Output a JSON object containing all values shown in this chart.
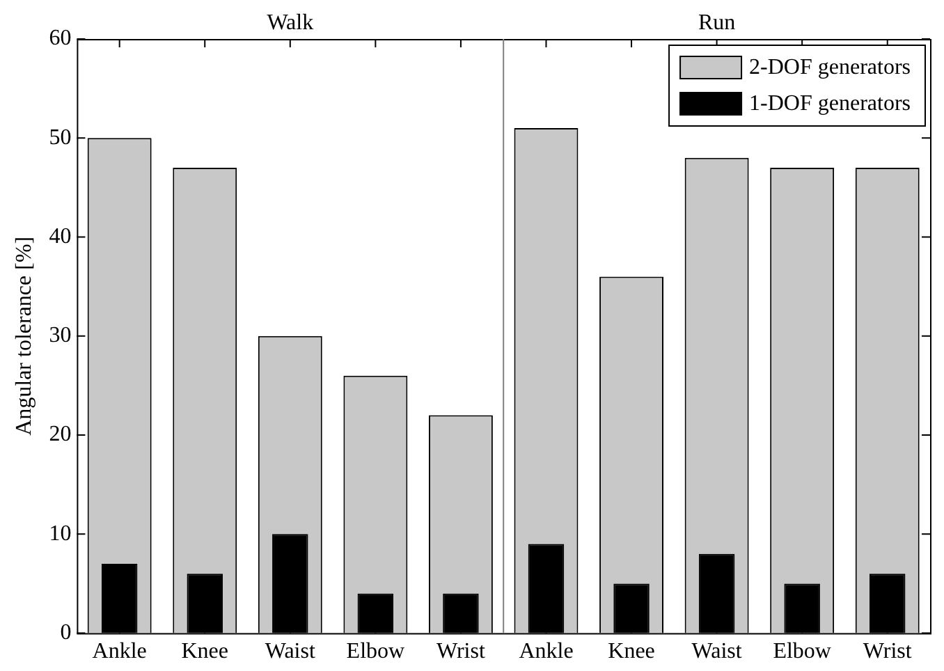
{
  "chart_data": {
    "type": "bar",
    "ylabel": "Angular tolerance [%]",
    "categories": [
      "Ankle",
      "Knee",
      "Waist",
      "Elbow",
      "Wrist",
      "Ankle",
      "Knee",
      "Waist",
      "Elbow",
      "Wrist"
    ],
    "series": [
      {
        "name": "2-DOF generators",
        "color": "#c8c8c8",
        "values": [
          50,
          47,
          30,
          26,
          22,
          51,
          36,
          48,
          47,
          47
        ]
      },
      {
        "name": "1-DOF generators",
        "color": "#000000",
        "values": [
          7,
          6,
          10,
          4,
          4,
          9,
          5,
          8,
          5,
          6
        ]
      }
    ],
    "ylim": [
      0,
      60
    ],
    "yticks": [
      0,
      10,
      20,
      30,
      40,
      50,
      60
    ],
    "grid": false,
    "legend": "top right",
    "annotations": [
      "Walk",
      "Run"
    ]
  }
}
